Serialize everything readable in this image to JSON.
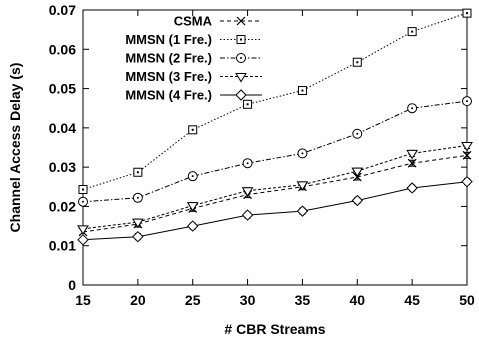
{
  "chart_data": {
    "type": "line",
    "title": "",
    "xlabel": "# CBR Streams",
    "ylabel": "Channel Access Delay (s)",
    "xlim": [
      15,
      50
    ],
    "ylim": [
      0,
      0.07
    ],
    "x": [
      15,
      20,
      25,
      30,
      35,
      40,
      45,
      50
    ],
    "x_ticks": [
      15,
      20,
      25,
      30,
      35,
      40,
      45,
      50
    ],
    "y_ticks": [
      0,
      0.01,
      0.02,
      0.03,
      0.04,
      0.05,
      0.06,
      0.07
    ],
    "grid": false,
    "legend_position": "top-left",
    "error_bars": true,
    "series": [
      {
        "name": "CSMA",
        "marker": "x-cross",
        "dash": "dashed",
        "values": [
          0.0135,
          0.0155,
          0.0195,
          0.023,
          0.025,
          0.0275,
          0.031,
          0.033
        ]
      },
      {
        "name": "MMSN (1 Fre.)",
        "marker": "square",
        "dash": "dotted",
        "values": [
          0.0243,
          0.0287,
          0.0395,
          0.046,
          0.0495,
          0.0567,
          0.0645,
          0.0692
        ]
      },
      {
        "name": "MMSN (2 Fre.)",
        "marker": "circle",
        "dash": "dash-dot",
        "values": [
          0.0212,
          0.0222,
          0.0277,
          0.031,
          0.0335,
          0.0385,
          0.045,
          0.0468
        ]
      },
      {
        "name": "MMSN (3 Fre.)",
        "marker": "triangle-down",
        "dash": "short-dash",
        "values": [
          0.0143,
          0.016,
          0.0202,
          0.024,
          0.0255,
          0.029,
          0.0335,
          0.0355
        ]
      },
      {
        "name": "MMSN (4 Fre.)",
        "marker": "diamond",
        "dash": "solid",
        "values": [
          0.0115,
          0.0123,
          0.015,
          0.0178,
          0.0188,
          0.0215,
          0.0247,
          0.0263
        ]
      }
    ]
  }
}
